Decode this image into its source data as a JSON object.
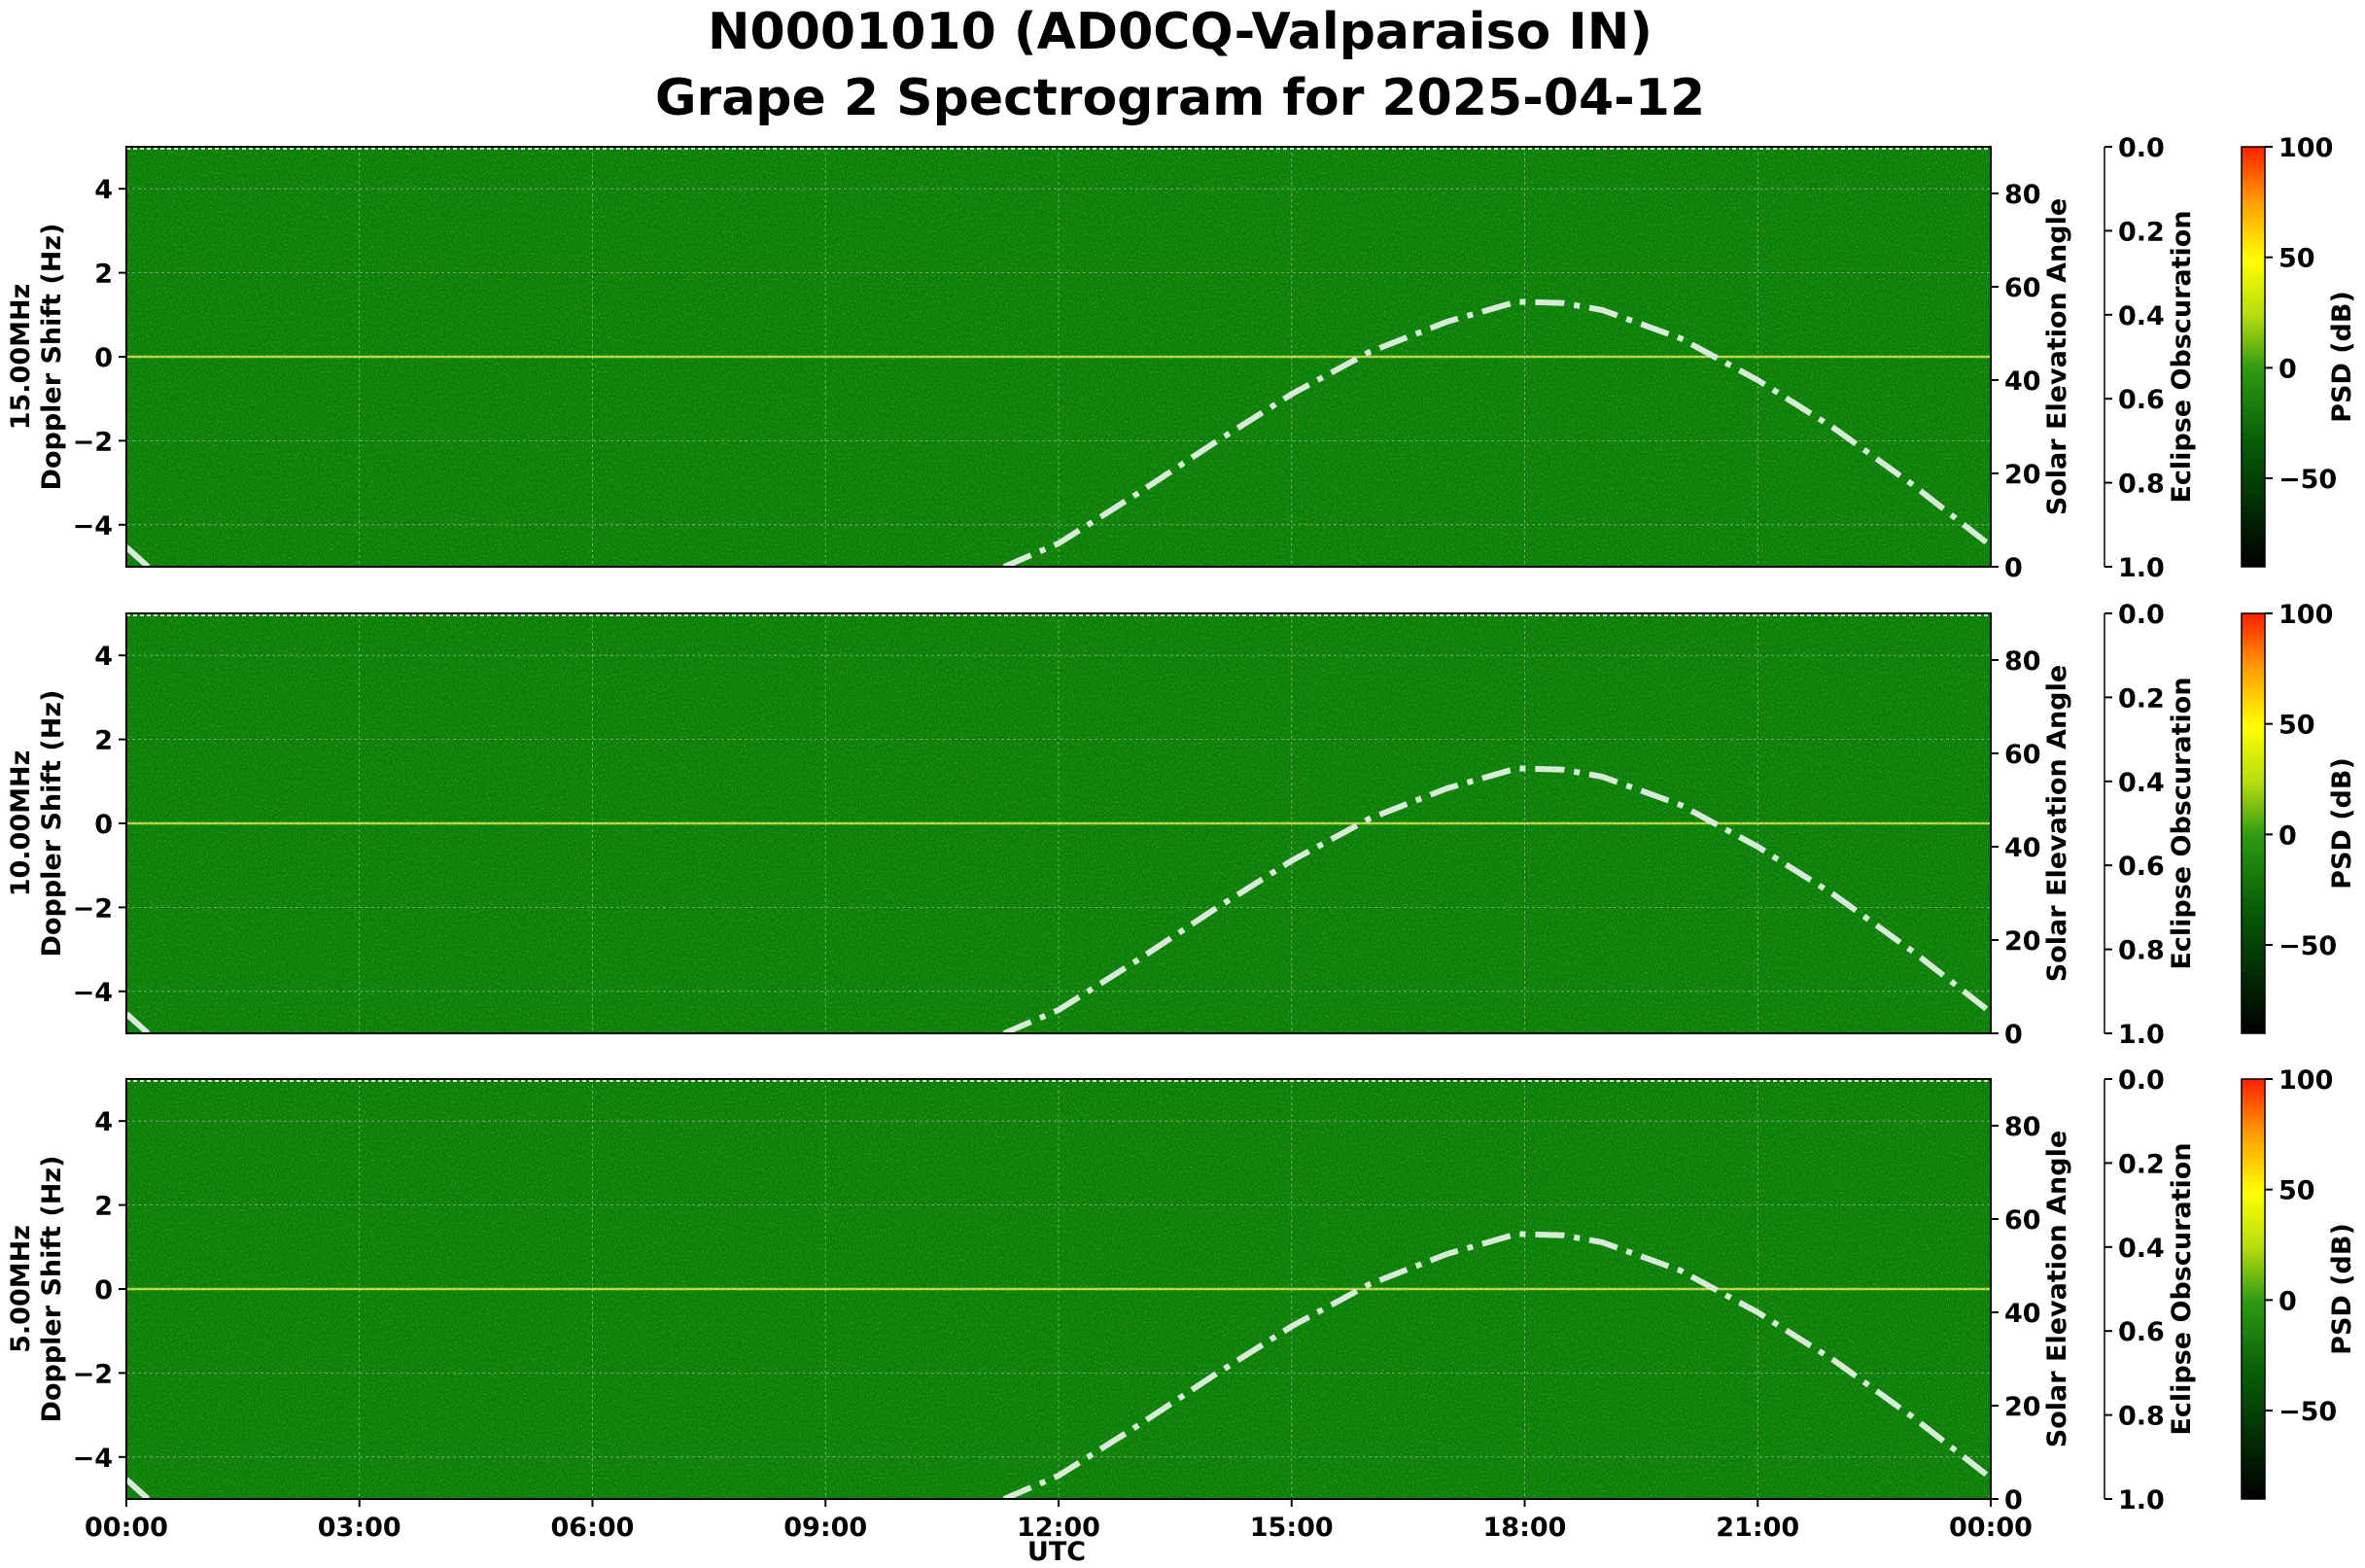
{
  "title_line1": "N0001010 (AD0CQ-Valparaiso IN)",
  "title_line2": "Grape 2 Spectrogram for 2025-04-12",
  "colors": {
    "background_green": "#0a7f0a",
    "psd_high": "#ff2000",
    "psd_mid": "#ffff00",
    "psd_zero": "#2f9a12",
    "psd_low": "#000000",
    "solar_curve": "#d8ead8"
  },
  "chart_data": [
    {
      "type": "heatmap",
      "panel_label": "15.00MHz",
      "ylabel": "Doppler Shift (Hz)",
      "ylim": [
        -5,
        5
      ],
      "yticks": [
        "4",
        "2",
        "0",
        "−2",
        "−4"
      ],
      "xlabel": "UTC",
      "xticks": [
        "00:00",
        "03:00",
        "06:00",
        "09:00",
        "12:00",
        "15:00",
        "18:00",
        "21:00",
        "00:00"
      ],
      "right_axis_label": "Solar Elevation Angle",
      "right_ticks": [
        "0",
        "20",
        "40",
        "60",
        "80"
      ],
      "right_ylim": [
        0,
        90
      ],
      "eclipse_label": "Eclipse Obscuration",
      "eclipse_ticks": [
        "0.0",
        "0.2",
        "0.4",
        "0.6",
        "0.8",
        "1.0"
      ],
      "colorbar_label": "PSD (dB)",
      "colorbar_ticks": [
        "100",
        "50",
        "0",
        "−50"
      ],
      "colorbar_range": [
        -90,
        100
      ],
      "grid": true,
      "series": [
        {
          "name": "",
          "points": [
            [
              0,
              4.2
            ],
            [
              0.5,
              -3.3
            ],
            [
              11.3,
              0
            ],
            [
              12,
              5
            ],
            [
              13,
              15.5
            ],
            [
              14,
              26.5
            ],
            [
              15,
              37
            ],
            [
              16,
              46
            ],
            [
              17,
              52.5
            ],
            [
              17.9,
              56.8
            ],
            [
              18.5,
              56.5
            ],
            [
              19,
              55
            ],
            [
              20,
              49
            ],
            [
              21,
              40
            ],
            [
              22,
              29.5
            ],
            [
              23,
              17.5
            ],
            [
              24,
              4.5
            ]
          ]
        }
      ]
    },
    {
      "type": "heatmap",
      "panel_label": "10.00MHz",
      "ylabel": "Doppler Shift (Hz)",
      "ylim": [
        -5,
        5
      ],
      "yticks": [
        "4",
        "2",
        "0",
        "−2",
        "−4"
      ],
      "xlabel": "UTC",
      "xticks": [
        "00:00",
        "03:00",
        "06:00",
        "09:00",
        "12:00",
        "15:00",
        "18:00",
        "21:00",
        "00:00"
      ],
      "right_axis_label": "Solar Elevation Angle",
      "right_ticks": [
        "0",
        "20",
        "40",
        "60",
        "80"
      ],
      "right_ylim": [
        0,
        90
      ],
      "eclipse_label": "Eclipse Obscuration",
      "eclipse_ticks": [
        "0.0",
        "0.2",
        "0.4",
        "0.6",
        "0.8",
        "1.0"
      ],
      "colorbar_label": "PSD (dB)",
      "colorbar_ticks": [
        "100",
        "50",
        "0",
        "−50"
      ],
      "colorbar_range": [
        -90,
        100
      ],
      "grid": true,
      "series": [
        {
          "name": "",
          "points": [
            [
              0,
              4.2
            ],
            [
              0.5,
              -3.3
            ],
            [
              11.3,
              0
            ],
            [
              12,
              5
            ],
            [
              13,
              15.5
            ],
            [
              14,
              26.5
            ],
            [
              15,
              37
            ],
            [
              16,
              46
            ],
            [
              17,
              52.5
            ],
            [
              17.9,
              56.8
            ],
            [
              18.5,
              56.5
            ],
            [
              19,
              55
            ],
            [
              20,
              49
            ],
            [
              21,
              40
            ],
            [
              22,
              29.5
            ],
            [
              23,
              17.5
            ],
            [
              24,
              4.5
            ]
          ]
        }
      ]
    },
    {
      "type": "heatmap",
      "panel_label": "5.00MHz",
      "ylabel": "Doppler Shift (Hz)",
      "ylim": [
        -5,
        5
      ],
      "yticks": [
        "4",
        "2",
        "0",
        "−2",
        "−4"
      ],
      "xlabel": "UTC",
      "xticks": [
        "00:00",
        "03:00",
        "06:00",
        "09:00",
        "12:00",
        "15:00",
        "18:00",
        "21:00",
        "00:00"
      ],
      "right_axis_label": "Solar Elevation Angle",
      "right_ticks": [
        "0",
        "20",
        "40",
        "60",
        "80"
      ],
      "right_ylim": [
        0,
        90
      ],
      "eclipse_label": "Eclipse Obscuration",
      "eclipse_ticks": [
        "0.0",
        "0.2",
        "0.4",
        "0.6",
        "0.8",
        "1.0"
      ],
      "colorbar_label": "PSD (dB)",
      "colorbar_ticks": [
        "100",
        "50",
        "0",
        "−50"
      ],
      "colorbar_range": [
        -90,
        100
      ],
      "grid": true,
      "series": [
        {
          "name": "",
          "points": [
            [
              0,
              4.2
            ],
            [
              0.5,
              -3.3
            ],
            [
              11.3,
              0
            ],
            [
              12,
              5
            ],
            [
              13,
              15.5
            ],
            [
              14,
              26.5
            ],
            [
              15,
              37
            ],
            [
              16,
              46
            ],
            [
              17,
              52.5
            ],
            [
              17.9,
              56.8
            ],
            [
              18.5,
              56.5
            ],
            [
              19,
              55
            ],
            [
              20,
              49
            ],
            [
              21,
              40
            ],
            [
              22,
              29.5
            ],
            [
              23,
              17.5
            ],
            [
              24,
              4.5
            ]
          ]
        }
      ]
    }
  ]
}
